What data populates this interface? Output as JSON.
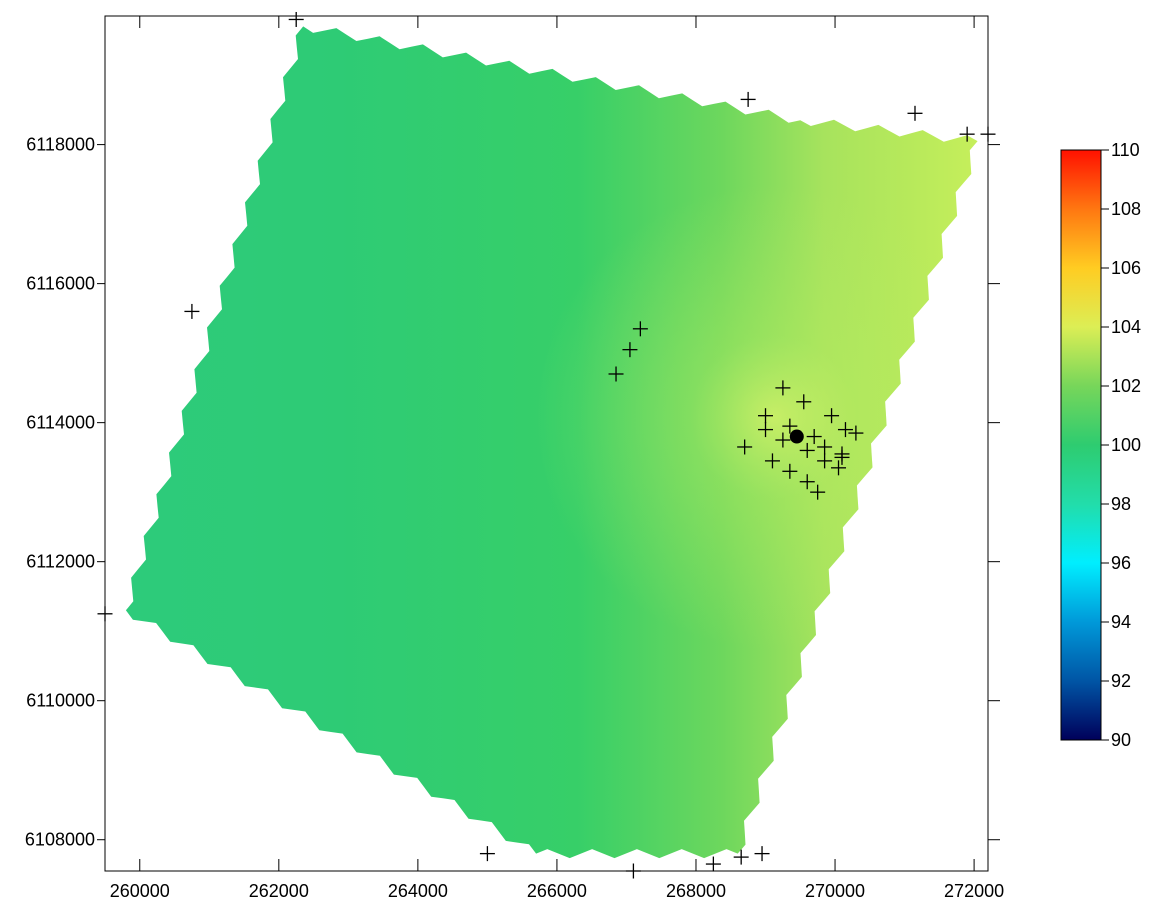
{
  "chart_data": {
    "type": "heatmap",
    "title": "",
    "xlabel": "",
    "ylabel": "",
    "xlim": [
      259500,
      272200
    ],
    "ylim": [
      6107550,
      6119850
    ],
    "xticks": [
      {
        "value": 260000,
        "label": "260000"
      },
      {
        "value": 262000,
        "label": "262000"
      },
      {
        "value": 264000,
        "label": "264000"
      },
      {
        "value": 266000,
        "label": "266000"
      },
      {
        "value": 268000,
        "label": "268000"
      },
      {
        "value": 270000,
        "label": "270000"
      },
      {
        "value": 272000,
        "label": "272000"
      }
    ],
    "yticks": [
      {
        "value": 6108000,
        "label": "6108000"
      },
      {
        "value": 6110000,
        "label": "6110000"
      },
      {
        "value": 6112000,
        "label": "6112000"
      },
      {
        "value": 6114000,
        "label": "6114000"
      },
      {
        "value": 6116000,
        "label": "6116000"
      },
      {
        "value": 6118000,
        "label": "6118000"
      }
    ],
    "grid": false,
    "surface": {
      "value_range": [
        90,
        110
      ],
      "min_observed_approx": 99.2,
      "max_observed_approx": 103.3,
      "max_location": [
        270300,
        6114800
      ],
      "boundary_polygon": [
        [
          262350,
          6119700
        ],
        [
          269500,
          6118350
        ],
        [
          272050,
          6118050
        ],
        [
          268600,
          6107800
        ],
        [
          265700,
          6107800
        ],
        [
          259800,
          6111300
        ]
      ]
    },
    "colorbar": {
      "min": 90,
      "max": 110,
      "position": "right",
      "ticks": [
        "110",
        "108",
        "106",
        "104",
        "102",
        "100",
        "98",
        "96",
        "94",
        "92",
        "90"
      ],
      "colors": [
        {
          "value": 90,
          "color": "#00005a"
        },
        {
          "value": 92,
          "color": "#0055a5"
        },
        {
          "value": 94,
          "color": "#0099d9"
        },
        {
          "value": 96,
          "color": "#00eeff"
        },
        {
          "value": 98,
          "color": "#22ddaa"
        },
        {
          "value": 100,
          "color": "#2ecc70"
        },
        {
          "value": 102,
          "color": "#77d65a"
        },
        {
          "value": 104,
          "color": "#dcee55"
        },
        {
          "value": 106,
          "color": "#ffcc22"
        },
        {
          "value": 108,
          "color": "#ff7711"
        },
        {
          "value": 110,
          "color": "#ff1100"
        }
      ]
    },
    "markers": {
      "cross_points": [
        [
          262250,
          6119800
        ],
        [
          268750,
          6118650
        ],
        [
          271150,
          6118450
        ],
        [
          271900,
          6118150
        ],
        [
          272200,
          6118150
        ],
        [
          260750,
          6115600
        ],
        [
          267200,
          6115350
        ],
        [
          267050,
          6115050
        ],
        [
          266850,
          6114700
        ],
        [
          269250,
          6114500
        ],
        [
          269550,
          6114300
        ],
        [
          269000,
          6114100
        ],
        [
          269950,
          6114100
        ],
        [
          269350,
          6113950
        ],
        [
          269000,
          6113900
        ],
        [
          270150,
          6113900
        ],
        [
          270300,
          6113850
        ],
        [
          269700,
          6113800
        ],
        [
          269250,
          6113750
        ],
        [
          269850,
          6113650
        ],
        [
          268700,
          6113650
        ],
        [
          269600,
          6113600
        ],
        [
          270100,
          6113550
        ],
        [
          270100,
          6113500
        ],
        [
          269100,
          6113450
        ],
        [
          269850,
          6113450
        ],
        [
          270050,
          6113350
        ],
        [
          269350,
          6113300
        ],
        [
          269600,
          6113150
        ],
        [
          269750,
          6113000
        ],
        [
          265000,
          6107800
        ],
        [
          267100,
          6107550
        ],
        [
          268250,
          6107650
        ],
        [
          268650,
          6107750
        ],
        [
          268950,
          6107800
        ],
        [
          259500,
          6111250
        ]
      ],
      "filled_point": [
        269450,
        6113800
      ]
    }
  }
}
